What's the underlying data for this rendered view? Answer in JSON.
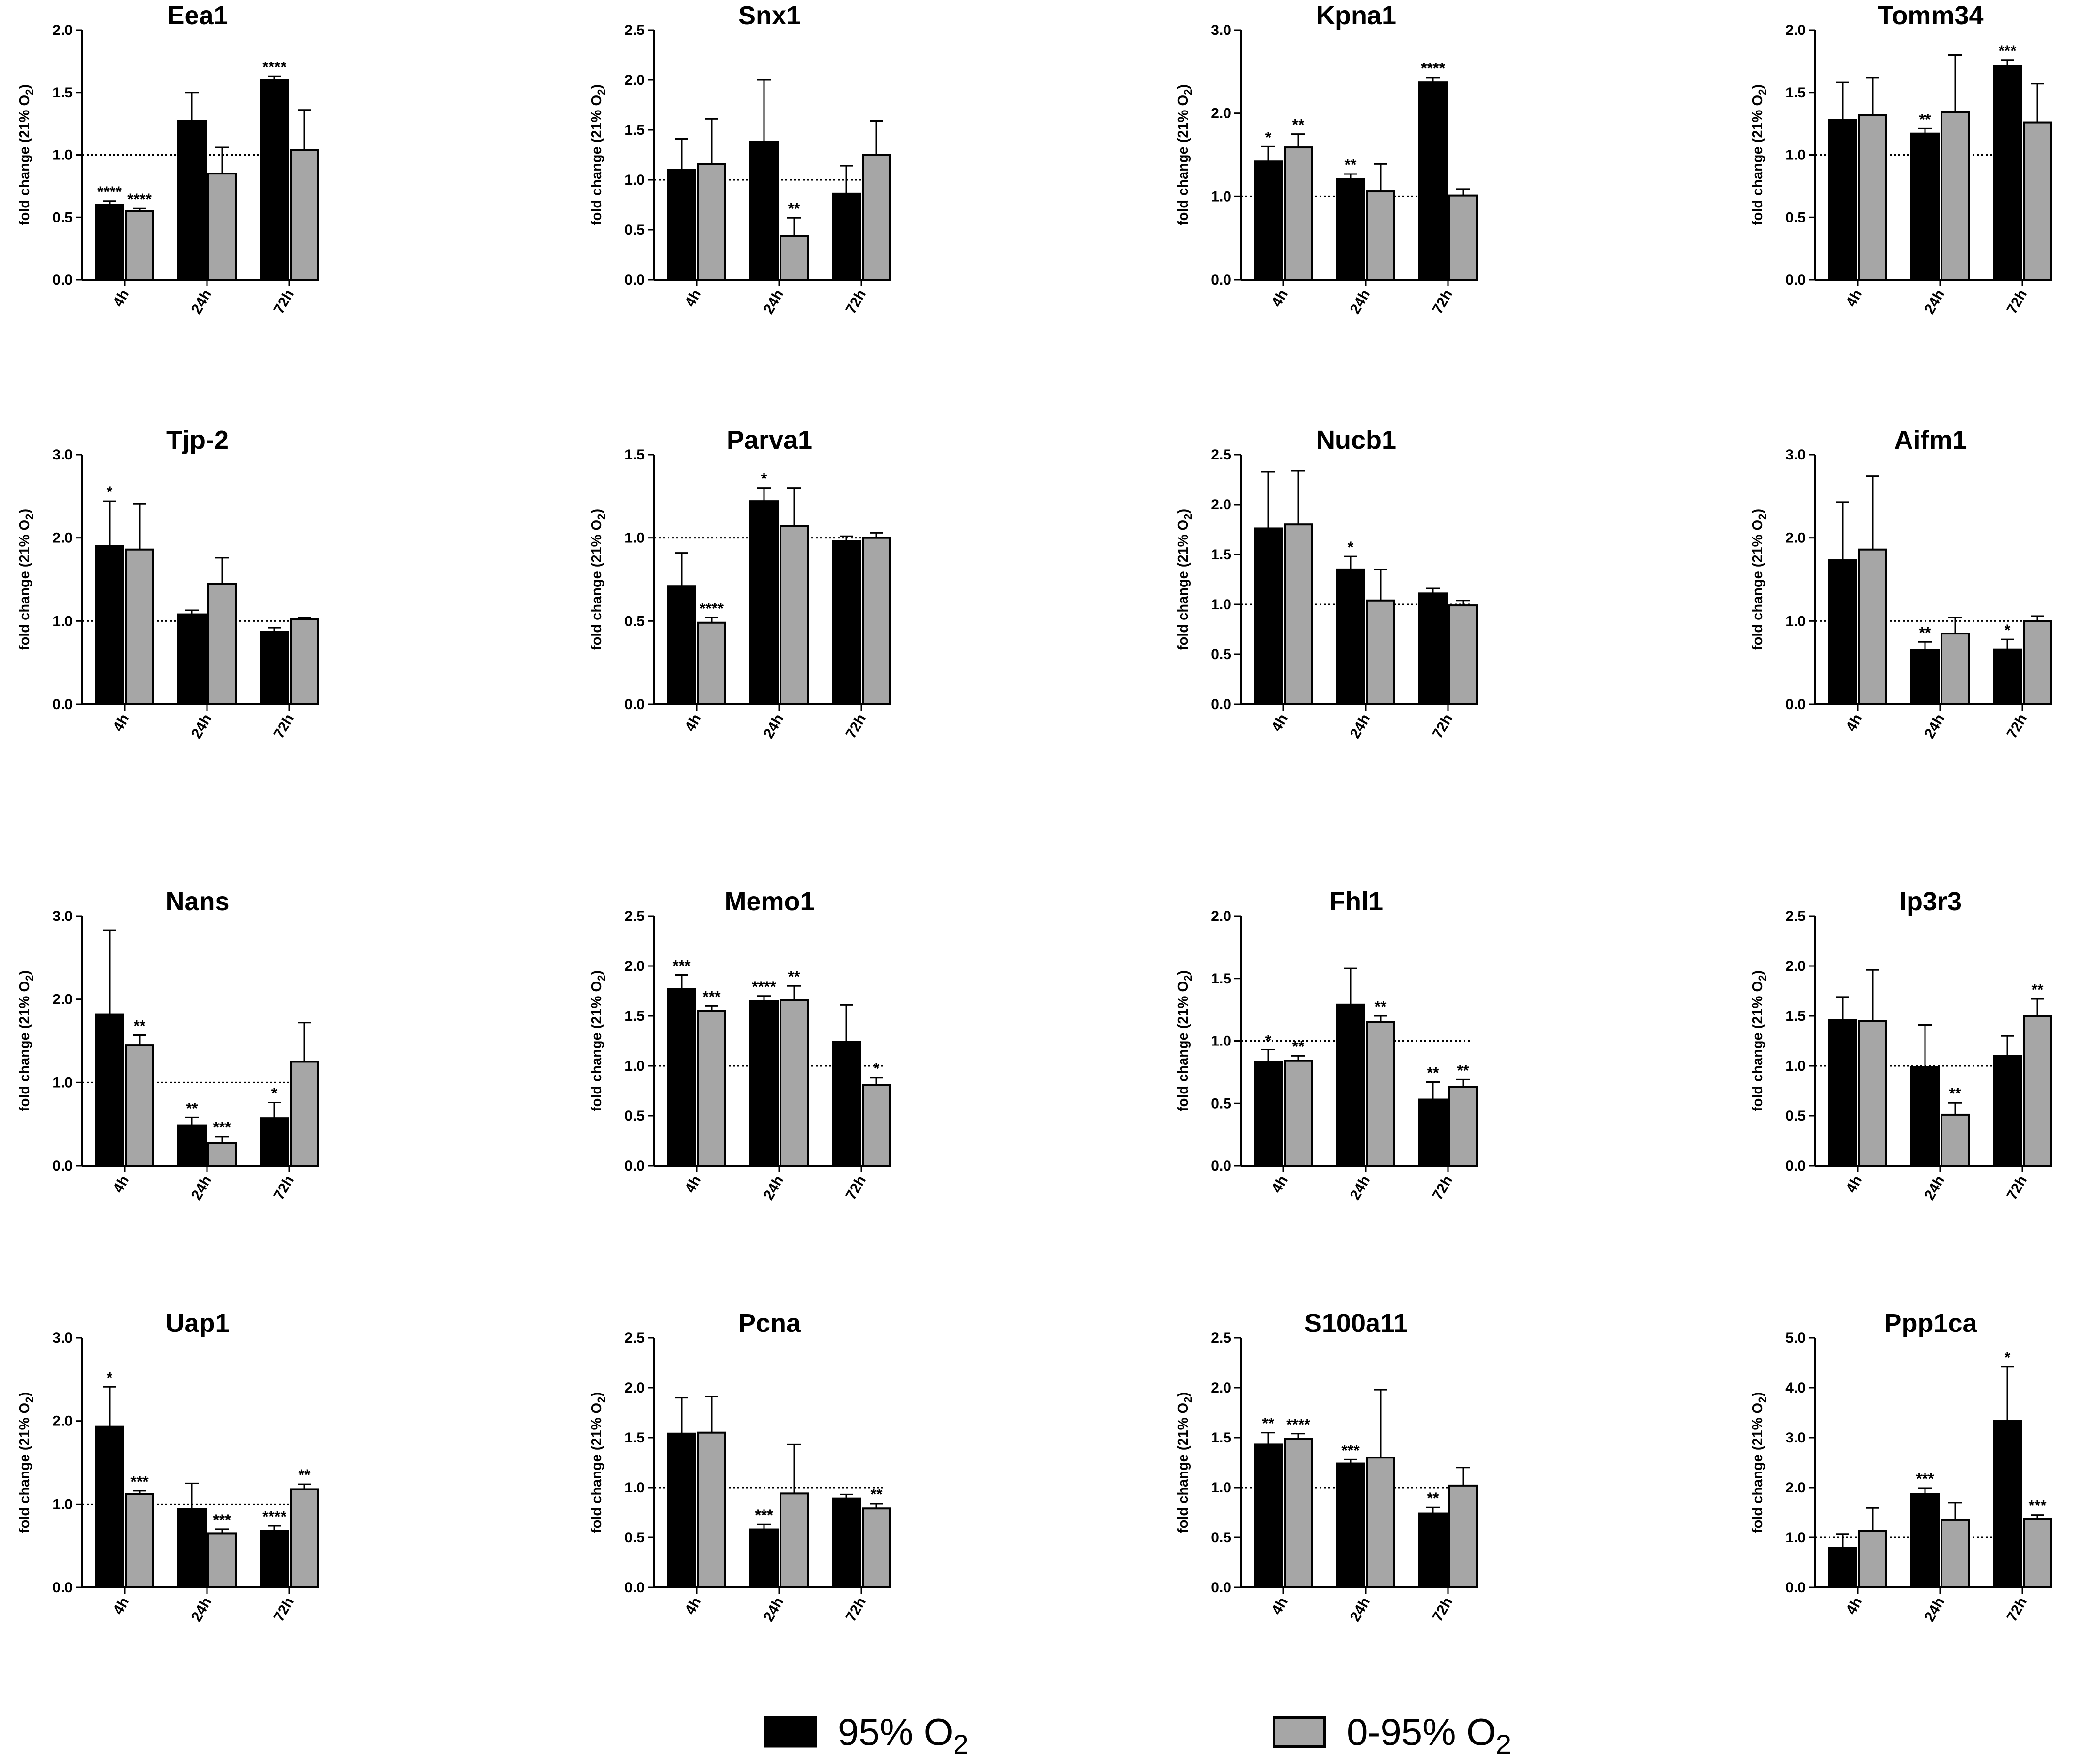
{
  "figure": {
    "groups": [
      "4h",
      "24h",
      "72h"
    ],
    "series_names": [
      "95% O2",
      "0-95% O2"
    ],
    "colors": {
      "series_a": "#000000",
      "series_b": "#a6a6a6",
      "reference_line": "#000000"
    },
    "reference_value": 1.0
  },
  "legend": {
    "items": [
      {
        "label": "95% O",
        "subscript": "2",
        "color": "#000000"
      },
      {
        "label": "0-95% O",
        "subscript": "2",
        "color": "#a6a6a6"
      }
    ]
  },
  "chart_data": [
    {
      "type": "bar",
      "title": "Eea1",
      "ylabel": "fold change (21% O2)",
      "yticks": [
        "0.0",
        "0.5",
        "1.0",
        "1.5",
        "2.0"
      ],
      "ylim": [
        0,
        2.0
      ],
      "categories": [
        "4h",
        "24h",
        "72h"
      ],
      "series": [
        {
          "name": "95% O2",
          "values": [
            0.6,
            1.27,
            1.6
          ],
          "errors": [
            0.03,
            0.23,
            0.03
          ],
          "sig": [
            "****",
            "",
            "****"
          ]
        },
        {
          "name": "0-95% O2",
          "values": [
            0.55,
            0.85,
            1.04
          ],
          "errors": [
            0.02,
            0.21,
            0.32
          ],
          "sig": [
            "****",
            "",
            ""
          ]
        }
      ]
    },
    {
      "type": "bar",
      "title": "Snx1",
      "ylabel": "fold change (21% O2)",
      "yticks": [
        "0.0",
        "0.5",
        "1.0",
        "1.5",
        "2.0",
        "2.5"
      ],
      "ylim": [
        0,
        2.5
      ],
      "categories": [
        "4h",
        "24h",
        "72h"
      ],
      "series": [
        {
          "name": "95% O2",
          "values": [
            1.1,
            1.38,
            0.86
          ],
          "errors": [
            0.31,
            0.62,
            0.28
          ],
          "sig": [
            "",
            "",
            ""
          ]
        },
        {
          "name": "0-95% O2",
          "values": [
            1.16,
            0.44,
            1.25
          ],
          "errors": [
            0.45,
            0.18,
            0.34
          ],
          "sig": [
            "",
            "**",
            ""
          ]
        }
      ]
    },
    {
      "type": "bar",
      "title": "Kpna1",
      "ylabel": "fold change (21% O2)",
      "yticks": [
        "0.0",
        "1.0",
        "2.0",
        "3.0"
      ],
      "ylim": [
        0,
        3.0
      ],
      "categories": [
        "4h",
        "24h",
        "72h"
      ],
      "series": [
        {
          "name": "95% O2",
          "values": [
            1.42,
            1.21,
            2.37
          ],
          "errors": [
            0.18,
            0.06,
            0.06
          ],
          "sig": [
            "*",
            "**",
            "****"
          ]
        },
        {
          "name": "0-95% O2",
          "values": [
            1.59,
            1.06,
            1.01
          ],
          "errors": [
            0.16,
            0.33,
            0.08
          ],
          "sig": [
            "**",
            "",
            ""
          ]
        }
      ]
    },
    {
      "type": "bar",
      "title": "Tomm34",
      "ylabel": "fold change (21% O2)",
      "yticks": [
        "0.0",
        "0.5",
        "1.0",
        "1.5",
        "2.0"
      ],
      "ylim": [
        0,
        2.0
      ],
      "categories": [
        "4h",
        "24h",
        "72h"
      ],
      "series": [
        {
          "name": "95% O2",
          "values": [
            1.28,
            1.17,
            1.71
          ],
          "errors": [
            0.3,
            0.04,
            0.05
          ],
          "sig": [
            "",
            "**",
            "***"
          ]
        },
        {
          "name": "0-95% O2",
          "values": [
            1.32,
            1.34,
            1.26
          ],
          "errors": [
            0.3,
            0.46,
            0.31
          ],
          "sig": [
            "",
            "",
            ""
          ]
        }
      ]
    },
    {
      "type": "bar",
      "title": "Tjp-2",
      "ylabel": "fold change (21% O2)",
      "yticks": [
        "0.0",
        "1.0",
        "2.0",
        "3.0"
      ],
      "ylim": [
        0,
        3.0
      ],
      "categories": [
        "4h",
        "24h",
        "72h"
      ],
      "series": [
        {
          "name": "95% O2",
          "values": [
            1.9,
            1.08,
            0.87
          ],
          "errors": [
            0.54,
            0.05,
            0.05
          ],
          "sig": [
            "*",
            "",
            ""
          ]
        },
        {
          "name": "0-95% O2",
          "values": [
            1.86,
            1.45,
            1.02
          ],
          "errors": [
            0.55,
            0.31,
            0.02
          ],
          "sig": [
            "",
            "",
            ""
          ]
        }
      ]
    },
    {
      "type": "bar",
      "title": "Parva1",
      "ylabel": "fold change (21% O2)",
      "yticks": [
        "0.0",
        "0.5",
        "1.0",
        "1.5"
      ],
      "ylim": [
        0,
        1.5
      ],
      "categories": [
        "4h",
        "24h",
        "72h"
      ],
      "series": [
        {
          "name": "95% O2",
          "values": [
            0.71,
            1.22,
            0.98
          ],
          "errors": [
            0.2,
            0.08,
            0.03
          ],
          "sig": [
            "",
            "*",
            ""
          ]
        },
        {
          "name": "0-95% O2",
          "values": [
            0.49,
            1.07,
            1.0
          ],
          "errors": [
            0.03,
            0.23,
            0.03
          ],
          "sig": [
            "****",
            "",
            ""
          ]
        }
      ]
    },
    {
      "type": "bar",
      "title": "Nucb1",
      "ylabel": "fold change (21% O2)",
      "yticks": [
        "0.0",
        "0.5",
        "1.0",
        "1.5",
        "2.0",
        "2.5"
      ],
      "ylim": [
        0,
        2.5
      ],
      "categories": [
        "4h",
        "24h",
        "72h"
      ],
      "series": [
        {
          "name": "95% O2",
          "values": [
            1.76,
            1.35,
            1.11
          ],
          "errors": [
            0.57,
            0.13,
            0.05
          ],
          "sig": [
            "",
            "*",
            ""
          ]
        },
        {
          "name": "0-95% O2",
          "values": [
            1.8,
            1.04,
            0.99
          ],
          "errors": [
            0.54,
            0.31,
            0.05
          ],
          "sig": [
            "",
            "",
            ""
          ]
        }
      ]
    },
    {
      "type": "bar",
      "title": "Aifm1",
      "ylabel": "fold change (21% O2)",
      "yticks": [
        "0.0",
        "1.0",
        "2.0",
        "3.0"
      ],
      "ylim": [
        0,
        3.0
      ],
      "categories": [
        "4h",
        "24h",
        "72h"
      ],
      "series": [
        {
          "name": "95% O2",
          "values": [
            1.73,
            0.65,
            0.66
          ],
          "errors": [
            0.7,
            0.1,
            0.12
          ],
          "sig": [
            "",
            "**",
            "*"
          ]
        },
        {
          "name": "0-95% O2",
          "values": [
            1.86,
            0.85,
            1.0
          ],
          "errors": [
            0.88,
            0.19,
            0.06
          ],
          "sig": [
            "",
            "",
            ""
          ]
        }
      ]
    },
    {
      "type": "bar",
      "title": "Nans",
      "ylabel": "fold change (21% O2)",
      "yticks": [
        "0.0",
        "1.0",
        "2.0",
        "3.0"
      ],
      "ylim": [
        0,
        3.0
      ],
      "categories": [
        "4h",
        "24h",
        "72h"
      ],
      "series": [
        {
          "name": "95% O2",
          "values": [
            1.82,
            0.48,
            0.57
          ],
          "errors": [
            1.01,
            0.1,
            0.19
          ],
          "sig": [
            "",
            "**",
            "*"
          ]
        },
        {
          "name": "0-95% O2",
          "values": [
            1.45,
            0.27,
            1.25
          ],
          "errors": [
            0.12,
            0.08,
            0.47
          ],
          "sig": [
            "**",
            "***",
            ""
          ]
        }
      ]
    },
    {
      "type": "bar",
      "title": "Memo1",
      "ylabel": "fold change (21% O2)",
      "yticks": [
        "0.0",
        "0.5",
        "1.0",
        "1.5",
        "2.0",
        "2.5"
      ],
      "ylim": [
        0,
        2.5
      ],
      "categories": [
        "4h",
        "24h",
        "72h"
      ],
      "series": [
        {
          "name": "95% O2",
          "values": [
            1.77,
            1.65,
            1.24
          ],
          "errors": [
            0.14,
            0.05,
            0.37
          ],
          "sig": [
            "***",
            "****",
            ""
          ]
        },
        {
          "name": "0-95% O2",
          "values": [
            1.55,
            1.66,
            0.81
          ],
          "errors": [
            0.05,
            0.14,
            0.07
          ],
          "sig": [
            "***",
            "**",
            "*"
          ]
        }
      ]
    },
    {
      "type": "bar",
      "title": "Fhl1",
      "ylabel": "fold change (21% O2)",
      "yticks": [
        "0.0",
        "0.5",
        "1.0",
        "1.5",
        "2.0"
      ],
      "ylim": [
        0,
        2.0
      ],
      "categories": [
        "4h",
        "24h",
        "72h"
      ],
      "series": [
        {
          "name": "95% O2",
          "values": [
            0.83,
            1.29,
            0.53
          ],
          "errors": [
            0.1,
            0.29,
            0.14
          ],
          "sig": [
            "*",
            "",
            "**"
          ]
        },
        {
          "name": "0-95% O2",
          "values": [
            0.84,
            1.15,
            0.63
          ],
          "errors": [
            0.04,
            0.05,
            0.06
          ],
          "sig": [
            "**",
            "**",
            "**"
          ]
        }
      ]
    },
    {
      "type": "bar",
      "title": "Ip3r3",
      "ylabel": "fold change (21% O2)",
      "yticks": [
        "0.0",
        "0.5",
        "1.0",
        "1.5",
        "2.0",
        "2.5"
      ],
      "ylim": [
        0,
        2.5
      ],
      "categories": [
        "4h",
        "24h",
        "72h"
      ],
      "series": [
        {
          "name": "95% O2",
          "values": [
            1.46,
            0.99,
            1.1
          ],
          "errors": [
            0.23,
            0.42,
            0.2
          ],
          "sig": [
            "",
            "",
            ""
          ]
        },
        {
          "name": "0-95% O2",
          "values": [
            1.45,
            0.51,
            1.5
          ],
          "errors": [
            0.51,
            0.12,
            0.17
          ],
          "sig": [
            "",
            "**",
            "**"
          ]
        }
      ]
    },
    {
      "type": "bar",
      "title": "Uap1",
      "ylabel": "fold change (21% O2)",
      "yticks": [
        "0.0",
        "1.0",
        "2.0",
        "3.0"
      ],
      "ylim": [
        0,
        3.0
      ],
      "categories": [
        "4h",
        "24h",
        "72h"
      ],
      "series": [
        {
          "name": "95% O2",
          "values": [
            1.93,
            0.94,
            0.68
          ],
          "errors": [
            0.48,
            0.31,
            0.06
          ],
          "sig": [
            "*",
            "",
            "****"
          ]
        },
        {
          "name": "0-95% O2",
          "values": [
            1.12,
            0.65,
            1.18
          ],
          "errors": [
            0.04,
            0.05,
            0.06
          ],
          "sig": [
            "***",
            "***",
            "**"
          ]
        }
      ]
    },
    {
      "type": "bar",
      "title": "Pcna",
      "ylabel": "fold change (21% O2)",
      "yticks": [
        "0.0",
        "0.5",
        "1.0",
        "1.5",
        "2.0",
        "2.5"
      ],
      "ylim": [
        0,
        2.5
      ],
      "categories": [
        "4h",
        "24h",
        "72h"
      ],
      "series": [
        {
          "name": "95% O2",
          "values": [
            1.54,
            0.58,
            0.89
          ],
          "errors": [
            0.36,
            0.05,
            0.04
          ],
          "sig": [
            "",
            "***",
            ""
          ]
        },
        {
          "name": "0-95% O2",
          "values": [
            1.55,
            0.94,
            0.79
          ],
          "errors": [
            0.36,
            0.49,
            0.05
          ],
          "sig": [
            "",
            "",
            "**"
          ]
        }
      ]
    },
    {
      "type": "bar",
      "title": "S100a11",
      "ylabel": "fold change (21% O2)",
      "yticks": [
        "0.0",
        "0.5",
        "1.0",
        "1.5",
        "2.0",
        "2.5"
      ],
      "ylim": [
        0,
        2.5
      ],
      "categories": [
        "4h",
        "24h",
        "72h"
      ],
      "series": [
        {
          "name": "95% O2",
          "values": [
            1.43,
            1.24,
            0.74
          ],
          "errors": [
            0.12,
            0.04,
            0.06
          ],
          "sig": [
            "**",
            "***",
            "**"
          ]
        },
        {
          "name": "0-95% O2",
          "values": [
            1.49,
            1.3,
            1.02
          ],
          "errors": [
            0.05,
            0.68,
            0.18
          ],
          "sig": [
            "****",
            "",
            ""
          ]
        }
      ]
    },
    {
      "type": "bar",
      "title": "Ppp1ca",
      "ylabel": "fold change (21% O2)",
      "yticks": [
        "0.0",
        "1.0",
        "2.0",
        "3.0",
        "4.0",
        "5.0"
      ],
      "ylim": [
        0,
        5.0
      ],
      "categories": [
        "4h",
        "24h",
        "72h"
      ],
      "series": [
        {
          "name": "95% O2",
          "values": [
            0.79,
            1.87,
            3.33
          ],
          "errors": [
            0.28,
            0.12,
            1.09
          ],
          "sig": [
            "",
            "***",
            "*"
          ]
        },
        {
          "name": "0-95% O2",
          "values": [
            1.13,
            1.35,
            1.37
          ],
          "errors": [
            0.46,
            0.35,
            0.08
          ],
          "sig": [
            "",
            "",
            "***"
          ]
        }
      ]
    }
  ]
}
